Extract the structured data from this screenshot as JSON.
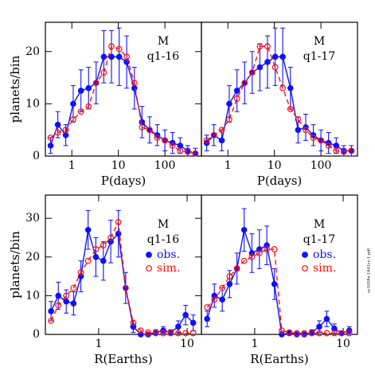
{
  "chart_data": [
    {
      "type": "line",
      "xscale": "log",
      "xlabel": "P(days)",
      "ylabel": "planets/bin",
      "annotations": [
        "M",
        "q1-16"
      ],
      "xlim": [
        0.27,
        610
      ],
      "xticks": [
        1,
        10,
        100
      ],
      "ylim": [
        0,
        25.6
      ],
      "yticks": [
        0,
        10,
        20
      ],
      "x": [
        0.35,
        0.5,
        0.74,
        1.07,
        1.57,
        2.29,
        3.33,
        4.87,
        7.1,
        10.4,
        15.1,
        22.1,
        32.2,
        47,
        68.6,
        100,
        146,
        213,
        310,
        453
      ],
      "series": [
        {
          "color": "#1010ff",
          "linestyle": "solid",
          "marker": "filled",
          "values": [
            2,
            6,
            4,
            10,
            12.5,
            13,
            14,
            19,
            19,
            19,
            18,
            13,
            6.5,
            5,
            4,
            3,
            2.5,
            2,
            1,
            0.5
          ],
          "errors": [
            1.5,
            2.5,
            2,
            3.5,
            4,
            4,
            4,
            5,
            5,
            5.5,
            5,
            4,
            3,
            2.5,
            2,
            2,
            2,
            1.5,
            1,
            1
          ]
        },
        {
          "color": "#ff1010",
          "linestyle": "dashed",
          "marker": "open",
          "values": [
            3.5,
            4.5,
            5,
            7,
            8.5,
            9.5,
            14,
            16,
            21,
            20.5,
            19,
            14,
            5.5,
            5,
            3.5,
            3,
            2,
            1,
            0.8,
            0.5
          ]
        }
      ]
    },
    {
      "type": "line",
      "xscale": "log",
      "xlabel": "P(days)",
      "annotations": [
        "M",
        "q1-17"
      ],
      "xlim": [
        0.27,
        610
      ],
      "xticks": [
        1,
        10,
        100
      ],
      "ylim": [
        0,
        25.6
      ],
      "x": [
        0.35,
        0.5,
        0.74,
        1.07,
        1.57,
        2.29,
        3.33,
        4.87,
        7.1,
        10.4,
        15.1,
        22.1,
        32.2,
        47,
        68.6,
        100,
        146,
        213,
        310,
        453
      ],
      "series": [
        {
          "color": "#1010ff",
          "linestyle": "solid",
          "marker": "filled",
          "values": [
            2.5,
            4,
            3,
            10,
            12.5,
            14,
            16,
            17,
            18,
            19,
            19,
            13,
            5,
            5.5,
            4,
            3,
            2.5,
            2,
            1,
            1
          ],
          "errors": [
            1.5,
            2,
            2,
            3.5,
            4,
            4,
            4,
            4.5,
            5,
            5.5,
            5.5,
            4,
            2.5,
            2.5,
            2,
            2,
            2,
            1.5,
            1,
            1
          ]
        },
        {
          "color": "#ff1010",
          "linestyle": "dashed",
          "marker": "open",
          "values": [
            3,
            4,
            5,
            7,
            11,
            14,
            16,
            21,
            21,
            17,
            13,
            9,
            7,
            5,
            3.5,
            3,
            2,
            1,
            0.8,
            1
          ]
        }
      ]
    },
    {
      "type": "line",
      "xscale": "log",
      "xlabel": "R(Earths)",
      "ylabel": "planets/bin",
      "annotations": [
        "M",
        "q1-16"
      ],
      "legend": "upper right",
      "xlim": [
        0.25,
        14.5
      ],
      "xticks": [
        1,
        10
      ],
      "ylim": [
        0,
        36
      ],
      "yticks": [
        0,
        10,
        20,
        30
      ],
      "x": [
        0.29,
        0.35,
        0.43,
        0.52,
        0.63,
        0.76,
        0.93,
        1.13,
        1.37,
        1.67,
        2.02,
        2.46,
        2.99,
        3.63,
        4.42,
        5.37,
        6.52,
        7.93,
        9.6,
        11.7
      ],
      "series": [
        {
          "name": "obs.",
          "color": "#1010ff",
          "linestyle": "solid",
          "marker": "filled",
          "values": [
            6,
            10,
            8.5,
            8,
            15,
            27,
            20,
            19,
            24,
            26,
            12,
            2,
            0,
            0,
            0.5,
            1,
            0.5,
            2,
            5,
            3
          ],
          "errors": [
            2.5,
            3.5,
            3,
            3,
            4,
            5,
            5,
            5,
            5.5,
            6,
            4,
            1.5,
            0.5,
            0.5,
            0.7,
            1,
            0.7,
            1.5,
            2.5,
            2
          ]
        },
        {
          "name": "sim.",
          "color": "#ff1010",
          "linestyle": "dashed",
          "marker": "open",
          "values": [
            3.5,
            7.5,
            10,
            12,
            16,
            19,
            22,
            23,
            25,
            29,
            12,
            3,
            1,
            0.5,
            0.3,
            0.3,
            0.3,
            0.3,
            0.3,
            0.3
          ]
        }
      ]
    },
    {
      "type": "line",
      "xscale": "log",
      "xlabel": "R(Earths)",
      "annotations": [
        "M",
        "q1-17"
      ],
      "legend": "upper right",
      "xlim": [
        0.25,
        14.5
      ],
      "xticks": [
        1,
        10
      ],
      "ylim": [
        0,
        36
      ],
      "x": [
        0.29,
        0.35,
        0.43,
        0.52,
        0.63,
        0.76,
        0.93,
        1.13,
        1.37,
        1.67,
        2.02,
        2.46,
        2.99,
        3.63,
        4.42,
        5.37,
        6.52,
        7.93,
        9.6,
        11.7
      ],
      "series": [
        {
          "name": "obs.",
          "color": "#1010ff",
          "linestyle": "solid",
          "marker": "filled",
          "values": [
            4,
            10,
            9,
            13,
            17,
            27,
            21,
            22,
            23,
            13,
            0,
            0.3,
            0,
            0,
            0.5,
            2,
            4,
            1.5,
            0.3,
            1
          ],
          "errors": [
            2,
            3,
            3,
            3.5,
            4,
            5.5,
            5,
            5,
            5,
            4,
            0.5,
            0.5,
            0.5,
            0.5,
            0.7,
            1.5,
            2,
            1.2,
            0.5,
            1
          ]
        },
        {
          "name": "sim.",
          "color": "#ff1010",
          "linestyle": "dashed",
          "marker": "open",
          "values": [
            7,
            9,
            12,
            15,
            17,
            19,
            20,
            21,
            22,
            22,
            1,
            0.5,
            0.3,
            0.3,
            0.3,
            0.3,
            0.3,
            0.3,
            0.3,
            0.3
          ]
        }
      ]
    }
  ],
  "side_note": "oc1058e-1641cc-1.pdf"
}
